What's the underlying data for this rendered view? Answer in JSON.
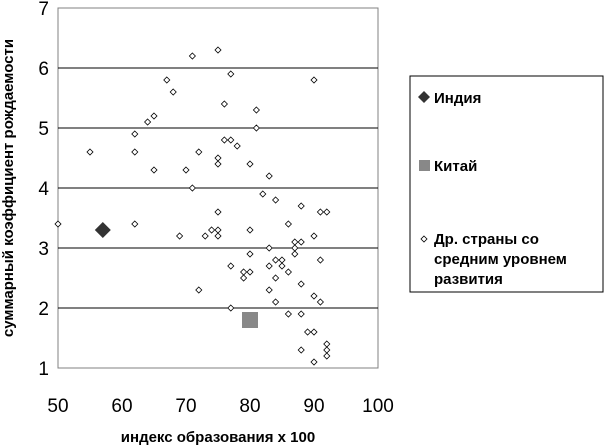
{
  "chart_data": {
    "type": "scatter",
    "xlabel": "индекс образования x 100",
    "ylabel": "суммарный коэффициент рождаемости",
    "xlim": [
      50,
      100
    ],
    "ylim": [
      1,
      7
    ],
    "xticks": [
      "50",
      "60",
      "70",
      "80",
      "90",
      "100"
    ],
    "yticks": [
      "1",
      "2",
      "3",
      "4",
      "5",
      "6",
      "7"
    ],
    "grid": "horizontal",
    "legend_position": "right",
    "series": [
      {
        "name": "Индия",
        "marker": "diamond",
        "color": "#333333",
        "points": [
          [
            57,
            3.3
          ]
        ]
      },
      {
        "name": "Китай",
        "marker": "square",
        "color": "#888888",
        "points": [
          [
            80,
            1.8
          ]
        ]
      },
      {
        "name": "Др. страны со средним уровнем развития",
        "marker": "small-diamond",
        "color": "#000000",
        "points": [
          [
            50,
            3.4
          ],
          [
            55,
            4.6
          ],
          [
            62,
            4.9
          ],
          [
            62,
            4.6
          ],
          [
            62,
            3.4
          ],
          [
            64,
            5.1
          ],
          [
            65,
            5.2
          ],
          [
            65,
            4.3
          ],
          [
            67,
            5.8
          ],
          [
            68,
            5.6
          ],
          [
            69,
            3.2
          ],
          [
            70,
            4.3
          ],
          [
            71,
            4.0
          ],
          [
            71,
            6.2
          ],
          [
            72,
            4.6
          ],
          [
            72,
            2.3
          ],
          [
            73,
            3.2
          ],
          [
            74,
            3.3
          ],
          [
            75,
            6.3
          ],
          [
            75,
            4.5
          ],
          [
            75,
            4.4
          ],
          [
            75,
            3.6
          ],
          [
            75,
            3.3
          ],
          [
            75,
            3.2
          ],
          [
            76,
            5.4
          ],
          [
            76,
            4.8
          ],
          [
            77,
            5.9
          ],
          [
            77,
            4.8
          ],
          [
            77,
            2.7
          ],
          [
            77,
            2.0
          ],
          [
            78,
            4.7
          ],
          [
            79,
            2.6
          ],
          [
            79,
            2.5
          ],
          [
            80,
            4.4
          ],
          [
            80,
            3.3
          ],
          [
            80,
            2.9
          ],
          [
            80,
            2.6
          ],
          [
            81,
            5.3
          ],
          [
            81,
            5.0
          ],
          [
            82,
            3.9
          ],
          [
            83,
            4.2
          ],
          [
            83,
            3.0
          ],
          [
            83,
            2.7
          ],
          [
            83,
            2.3
          ],
          [
            84,
            3.8
          ],
          [
            84,
            2.8
          ],
          [
            84,
            2.5
          ],
          [
            84,
            2.1
          ],
          [
            85,
            2.8
          ],
          [
            85,
            2.7
          ],
          [
            86,
            3.4
          ],
          [
            86,
            2.6
          ],
          [
            86,
            1.9
          ],
          [
            87,
            3.1
          ],
          [
            87,
            3.0
          ],
          [
            87,
            2.9
          ],
          [
            88,
            3.7
          ],
          [
            88,
            3.1
          ],
          [
            88,
            2.4
          ],
          [
            88,
            1.9
          ],
          [
            88,
            1.3
          ],
          [
            89,
            1.6
          ],
          [
            90,
            5.8
          ],
          [
            90,
            3.2
          ],
          [
            90,
            2.2
          ],
          [
            90,
            1.6
          ],
          [
            90,
            1.1
          ],
          [
            91,
            3.6
          ],
          [
            91,
            2.8
          ],
          [
            91,
            2.1
          ],
          [
            92,
            3.6
          ],
          [
            92,
            1.4
          ],
          [
            92,
            1.3
          ],
          [
            92,
            1.2
          ]
        ]
      }
    ]
  }
}
